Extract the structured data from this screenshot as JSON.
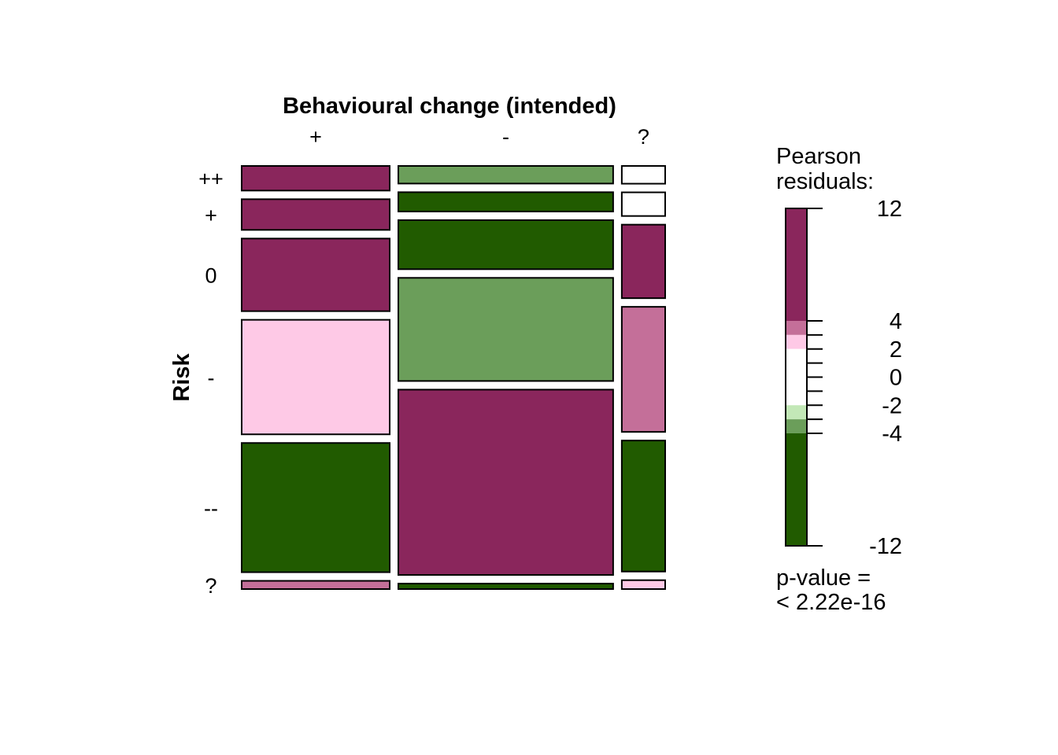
{
  "chart_data": {
    "type": "mosaic",
    "x_axis": {
      "label": "Behavioural change (intended)",
      "categories": [
        "+",
        "-",
        "?"
      ]
    },
    "y_axis": {
      "label": "Risk",
      "categories": [
        "++",
        "+",
        "0",
        "-",
        "--",
        "?"
      ]
    },
    "column_proportions": [
      0.348,
      0.505,
      0.102
    ],
    "cell_proportions": [
      [
        0.057,
        0.071,
        0.168,
        0.265,
        0.299,
        0.019
      ],
      [
        0.042,
        0.046,
        0.117,
        0.246,
        0.442,
        0.013
      ],
      [
        0.042,
        0.056,
        0.174,
        0.296,
        0.31,
        0.021
      ]
    ],
    "residual_bins": [
      [
        "r_gt4",
        "r_gt4",
        "r_gt4",
        "r_2to4",
        "r_lt_neg4",
        "r_4to12_light"
      ],
      [
        "r_neg2to_neg4",
        "r_lt_neg4",
        "r_lt_neg4",
        "r_neg2to_neg4",
        "r_gt4",
        "r_lt_neg4"
      ],
      [
        "r_0",
        "r_0",
        "r_gt4",
        "r_4to12_light",
        "r_lt_neg4",
        "r_2to4"
      ]
    ],
    "colors": {
      "r_gt4": "#8a265c",
      "r_4to12_light": "#c46f99",
      "r_2to4": "#fec9e6",
      "r_0": "#ffffff",
      "r_neg2to_neg4": "#6b9e5a",
      "r_neg2_light": "#c3e8b7",
      "r_lt_neg4": "#215b00"
    },
    "legend": {
      "title_line1": "Pearson",
      "title_line2": "residuals:",
      "ticks": [
        {
          "value": 12,
          "label": "12"
        },
        {
          "value": 4,
          "label": "4"
        },
        {
          "value": 2,
          "label": "2"
        },
        {
          "value": 0,
          "label": "0"
        },
        {
          "value": -2,
          "label": "-2"
        },
        {
          "value": -4,
          "label": "-4"
        },
        {
          "value": -12,
          "label": "-12"
        }
      ],
      "segments": [
        {
          "from": 4,
          "to": 12,
          "color": "#8a265c"
        },
        {
          "from": 3,
          "to": 4,
          "color": "#c46f99"
        },
        {
          "from": 2,
          "to": 3,
          "color": "#fec9e6"
        },
        {
          "from": -2,
          "to": 2,
          "color": "#ffffff"
        },
        {
          "from": -3,
          "to": -2,
          "color": "#c3e8b7"
        },
        {
          "from": -4,
          "to": -3,
          "color": "#6b9e5a"
        },
        {
          "from": -12,
          "to": -4,
          "color": "#215b00"
        }
      ],
      "minor_ticks": [
        3,
        1,
        -1,
        -3
      ],
      "pvalue_line1": "p-value =",
      "pvalue_line2": "< 2.22e-16"
    }
  }
}
